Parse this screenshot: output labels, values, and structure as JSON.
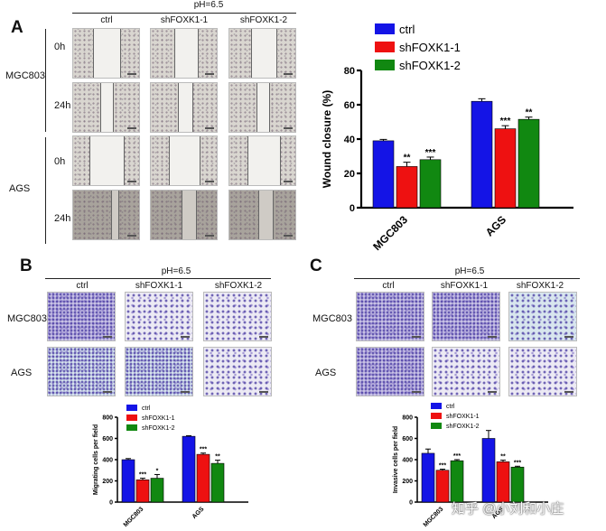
{
  "panels": {
    "A": {
      "letter": "A",
      "ph_label": "pH=6.5",
      "col_headers": [
        "ctrl",
        "shFOXK1-1",
        "shFOXK1-2"
      ],
      "cell_lines": [
        "MGC803",
        "AGS"
      ],
      "timepoints": [
        "0h",
        "24h"
      ]
    },
    "B": {
      "letter": "B",
      "ph_label": "pH=6.5",
      "col_headers": [
        "ctrl",
        "shFOXK1-1",
        "shFOXK1-2"
      ],
      "row_labels": [
        "MGC803",
        "AGS"
      ]
    },
    "C": {
      "letter": "C",
      "ph_label": "pH=6.5",
      "col_headers": [
        "ctrl",
        "shFOXK1-1",
        "shFOXK1-2"
      ],
      "row_labels": [
        "MGC803",
        "AGS"
      ]
    }
  },
  "watermark": "知乎 @小刘和小庄",
  "chart_data": [
    {
      "id": "A",
      "type": "bar",
      "title": "",
      "xlabel": "",
      "ylabel": "Wound closure (%)",
      "ylim": [
        0,
        80
      ],
      "yticks": [
        0,
        20,
        40,
        60,
        80
      ],
      "categories": [
        "MGC803",
        "AGS"
      ],
      "legend_position": "top-right",
      "colors": [
        "#1414e6",
        "#ee1111",
        "#118811"
      ],
      "series": [
        {
          "name": "ctrl",
          "values": [
            39,
            62
          ],
          "errors": [
            0.8,
            1.5
          ],
          "sig": [
            "",
            ""
          ]
        },
        {
          "name": "shFOXK1-1",
          "values": [
            24,
            46
          ],
          "errors": [
            2.5,
            1.8
          ],
          "sig": [
            "**",
            "***"
          ]
        },
        {
          "name": "shFOXK1-2",
          "values": [
            28,
            51.5
          ],
          "errors": [
            1.5,
            1.3
          ],
          "sig": [
            "***",
            "**"
          ]
        }
      ]
    },
    {
      "id": "B",
      "type": "bar",
      "title": "",
      "xlabel": "",
      "ylabel": "Migrating cells per field",
      "ylim": [
        0,
        800
      ],
      "yticks": [
        0,
        200,
        400,
        600,
        800
      ],
      "categories": [
        "MGC803",
        "AGS"
      ],
      "legend_position": "top-left",
      "colors": [
        "#1414e6",
        "#ee1111",
        "#118811"
      ],
      "series": [
        {
          "name": "ctrl",
          "values": [
            400,
            620
          ],
          "errors": [
            10,
            5
          ],
          "sig": [
            "",
            ""
          ]
        },
        {
          "name": "shFOXK1-1",
          "values": [
            210,
            450
          ],
          "errors": [
            15,
            12
          ],
          "sig": [
            "***",
            "***"
          ]
        },
        {
          "name": "shFOXK1-2",
          "values": [
            225,
            365
          ],
          "errors": [
            35,
            30
          ],
          "sig": [
            "*",
            "**"
          ]
        }
      ]
    },
    {
      "id": "C",
      "type": "bar",
      "title": "",
      "xlabel": "",
      "ylabel": "Invasive cells per field",
      "ylim": [
        0,
        800
      ],
      "yticks": [
        0,
        200,
        400,
        600,
        800
      ],
      "categories": [
        "MGC803",
        "AGS"
      ],
      "legend_position": "top-left",
      "colors": [
        "#1414e6",
        "#ee1111",
        "#118811"
      ],
      "series": [
        {
          "name": "ctrl",
          "values": [
            460,
            600
          ],
          "errors": [
            40,
            75
          ],
          "sig": [
            "",
            ""
          ]
        },
        {
          "name": "shFOXK1-1",
          "values": [
            300,
            380
          ],
          "errors": [
            10,
            15
          ],
          "sig": [
            "***",
            "**"
          ]
        },
        {
          "name": "shFOXK1-2",
          "values": [
            390,
            330
          ],
          "errors": [
            10,
            8
          ],
          "sig": [
            "***",
            "***"
          ]
        }
      ]
    }
  ]
}
